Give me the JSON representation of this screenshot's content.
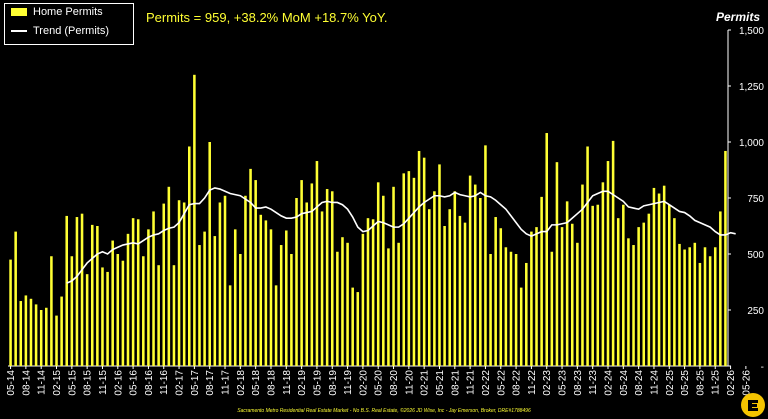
{
  "headline": "Permits = 959, +38.2% MoM +18.7% YoY.",
  "axis_title": "Permits",
  "footer": "Sacramento Metro Residential Real Estate Market - No B.S. Real Estate, ©2026 JD Wise, Inc - Jay Emerson, Broker, DRE#1788496",
  "legend": {
    "bar_label": "Home Permits",
    "line_label": "Trend (Permits)"
  },
  "colors": {
    "bar": "#ffff33",
    "line": "#ffffff",
    "background": "#000000",
    "text": "#ffffff",
    "logo": "#f5c400"
  },
  "logo_icon": "logo-icon",
  "chart_data": {
    "type": "bar",
    "title": "",
    "ylabel": "Permits",
    "ylim": [
      0,
      1500
    ],
    "yticks": [
      0,
      250,
      500,
      750,
      1000,
      1250,
      1500
    ],
    "ytick_labels": [
      "-",
      "250",
      "500",
      "750",
      "1,000",
      "1,250",
      "1,500"
    ],
    "grid": false,
    "legend_position": "top-left",
    "x_tick_labels": [
      "05-14",
      "08-14",
      "11-14",
      "02-15",
      "05-15",
      "08-15",
      "11-15",
      "02-16",
      "05-16",
      "08-16",
      "11-16",
      "02-17",
      "05-17",
      "08-17",
      "11-17",
      "02-18",
      "05-18",
      "08-18",
      "11-18",
      "02-19",
      "05-19",
      "08-19",
      "11-19",
      "02-20",
      "05-20",
      "08-20",
      "11-20",
      "02-21",
      "05-21",
      "08-21",
      "11-21",
      "02-22",
      "05-22",
      "08-22",
      "11-22",
      "02-23",
      "05-23",
      "08-23",
      "11-23",
      "02-24",
      "05-24",
      "08-24",
      "11-24",
      "02-25",
      "05-25",
      "08-25",
      "11-25",
      "02-26",
      "05-26"
    ],
    "series": [
      {
        "name": "Home Permits",
        "kind": "bar",
        "values": [
          475,
          600,
          290,
          315,
          300,
          275,
          250,
          260,
          490,
          225,
          310,
          670,
          490,
          665,
          680,
          410,
          630,
          625,
          440,
          420,
          560,
          500,
          470,
          590,
          660,
          655,
          490,
          610,
          690,
          450,
          725,
          800,
          450,
          740,
          730,
          980,
          1300,
          540,
          600,
          1000,
          580,
          730,
          760,
          360,
          610,
          500,
          760,
          880,
          830,
          675,
          650,
          610,
          360,
          540,
          605,
          500,
          750,
          830,
          730,
          815,
          915,
          690,
          790,
          780,
          510,
          575,
          550,
          350,
          330,
          590,
          660,
          655,
          820,
          760,
          525,
          800,
          550,
          860,
          870,
          840,
          960,
          930,
          700,
          780,
          900,
          625,
          700,
          780,
          670,
          640,
          850,
          810,
          750,
          985,
          500,
          665,
          615,
          530,
          510,
          500,
          350,
          460,
          600,
          620,
          755,
          1040,
          510,
          910,
          620,
          735,
          635,
          550,
          810,
          980,
          715,
          720,
          820,
          915,
          1005,
          660,
          720,
          570,
          540,
          620,
          640,
          680,
          795,
          770,
          805,
          720,
          660,
          545,
          520,
          530,
          550,
          460,
          530,
          490,
          530,
          690,
          960
        ]
      },
      {
        "name": "Trend (Permits)",
        "kind": "line",
        "values": [
          null,
          null,
          null,
          null,
          null,
          null,
          null,
          null,
          null,
          null,
          null,
          370,
          380,
          400,
          430,
          460,
          480,
          500,
          510,
          500,
          520,
          530,
          540,
          545,
          550,
          545,
          560,
          575,
          585,
          590,
          605,
          615,
          620,
          640,
          680,
          720,
          725,
          725,
          750,
          785,
          795,
          790,
          780,
          770,
          765,
          760,
          745,
          730,
          705,
          705,
          710,
          700,
          685,
          670,
          660,
          660,
          665,
          680,
          685,
          690,
          710,
          730,
          735,
          730,
          730,
          720,
          700,
          665,
          620,
          600,
          605,
          625,
          645,
          640,
          630,
          620,
          620,
          635,
          660,
          685,
          710,
          730,
          745,
          760,
          760,
          755,
          760,
          775,
          765,
          760,
          755,
          760,
          775,
          760,
          755,
          740,
          720,
          700,
          670,
          640,
          610,
          590,
          580,
          590,
          600,
          600,
          630,
          630,
          635,
          640,
          660,
          680,
          700,
          730,
          760,
          770,
          780,
          780,
          765,
          750,
          735,
          710,
          705,
          700,
          715,
          720,
          725,
          730,
          735,
          720,
          705,
          690,
          685,
          670,
          650,
          640,
          630,
          620,
          600,
          585,
          585,
          595,
          590
        ]
      }
    ]
  }
}
